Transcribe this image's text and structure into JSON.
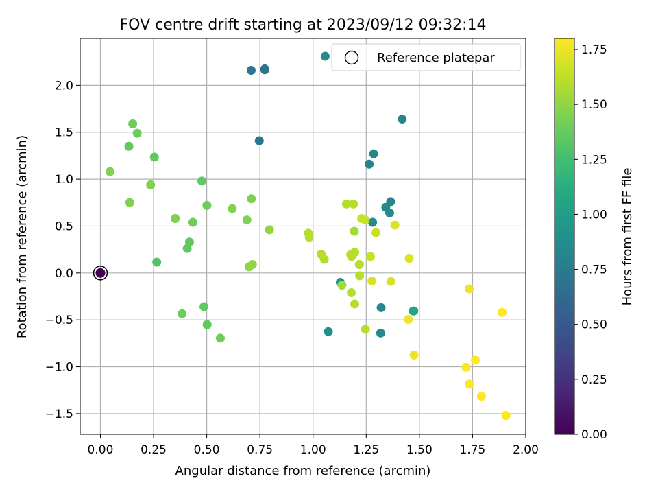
{
  "chart_data": {
    "type": "scatter",
    "title": "FOV centre drift starting at 2023/09/12 09:32:14",
    "xlabel": "Angular distance from reference (arcmin)",
    "ylabel": "Rotation from reference (arcmin)",
    "xlim": [
      -0.095,
      2.0
    ],
    "ylim": [
      -1.72,
      2.5
    ],
    "xticks": [
      "0.00",
      "0.25",
      "0.50",
      "0.75",
      "1.00",
      "1.25",
      "1.50",
      "1.75",
      "2.00"
    ],
    "yticks": [
      "−1.5",
      "−1.0",
      "−0.5",
      "0.0",
      "0.5",
      "1.0",
      "1.5",
      "2.0"
    ],
    "grid": true,
    "legend": {
      "placement": "top-right",
      "entries": [
        "Reference platepar"
      ]
    },
    "colorbar": {
      "label": "Hours from first FF file",
      "colormap": "viridis",
      "range": [
        0.0,
        1.8
      ],
      "ticks": [
        "0.00",
        "0.25",
        "0.50",
        "0.75",
        "1.00",
        "1.25",
        "1.50",
        "1.75"
      ]
    },
    "reference_point": {
      "x": 0.0,
      "y": 0.0,
      "hours": 0.0
    },
    "points": [
      {
        "x": 0.709,
        "y": 2.16,
        "hours": 0.7
      },
      {
        "x": 0.773,
        "y": 2.175,
        "hours": 0.7
      },
      {
        "x": 0.773,
        "y": 2.165,
        "hours": 0.7
      },
      {
        "x": 1.057,
        "y": 2.31,
        "hours": 0.85
      },
      {
        "x": 0.747,
        "y": 1.41,
        "hours": 0.72
      },
      {
        "x": 1.419,
        "y": 1.64,
        "hours": 0.82
      },
      {
        "x": 1.285,
        "y": 1.27,
        "hours": 0.82
      },
      {
        "x": 1.264,
        "y": 1.16,
        "hours": 0.8
      },
      {
        "x": 1.365,
        "y": 0.76,
        "hours": 0.82
      },
      {
        "x": 1.342,
        "y": 0.7,
        "hours": 0.85
      },
      {
        "x": 1.36,
        "y": 0.64,
        "hours": 0.85
      },
      {
        "x": 1.28,
        "y": 0.54,
        "hours": 0.85
      },
      {
        "x": 1.128,
        "y": -0.1,
        "hours": 0.9
      },
      {
        "x": 1.072,
        "y": -0.625,
        "hours": 0.9
      },
      {
        "x": 1.32,
        "y": -0.37,
        "hours": 0.85
      },
      {
        "x": 1.318,
        "y": -0.64,
        "hours": 0.85
      },
      {
        "x": 1.471,
        "y": -0.405,
        "hours": 1.0
      },
      {
        "x": 1.474,
        "y": -0.405,
        "hours": 1.05
      },
      {
        "x": 0.152,
        "y": 1.59,
        "hours": 1.4
      },
      {
        "x": 0.173,
        "y": 1.49,
        "hours": 1.4
      },
      {
        "x": 0.134,
        "y": 1.35,
        "hours": 1.35
      },
      {
        "x": 0.254,
        "y": 1.235,
        "hours": 1.35
      },
      {
        "x": 0.045,
        "y": 1.08,
        "hours": 1.45
      },
      {
        "x": 0.236,
        "y": 0.94,
        "hours": 1.45
      },
      {
        "x": 0.477,
        "y": 0.98,
        "hours": 1.35
      },
      {
        "x": 0.138,
        "y": 0.75,
        "hours": 1.45
      },
      {
        "x": 0.501,
        "y": 0.72,
        "hours": 1.4
      },
      {
        "x": 0.62,
        "y": 0.685,
        "hours": 1.45
      },
      {
        "x": 0.71,
        "y": 0.79,
        "hours": 1.45
      },
      {
        "x": 0.352,
        "y": 0.58,
        "hours": 1.45
      },
      {
        "x": 0.435,
        "y": 0.54,
        "hours": 1.4
      },
      {
        "x": 0.689,
        "y": 0.565,
        "hours": 1.45
      },
      {
        "x": 0.795,
        "y": 0.46,
        "hours": 1.5
      },
      {
        "x": 0.419,
        "y": 0.33,
        "hours": 1.35
      },
      {
        "x": 0.408,
        "y": 0.26,
        "hours": 1.35
      },
      {
        "x": 0.265,
        "y": 0.115,
        "hours": 1.3
      },
      {
        "x": 0.699,
        "y": 0.065,
        "hours": 1.5
      },
      {
        "x": 0.715,
        "y": 0.09,
        "hours": 1.5
      },
      {
        "x": 0.384,
        "y": -0.435,
        "hours": 1.4
      },
      {
        "x": 0.487,
        "y": -0.36,
        "hours": 1.35
      },
      {
        "x": 0.502,
        "y": -0.55,
        "hours": 1.35
      },
      {
        "x": 0.564,
        "y": -0.695,
        "hours": 1.4
      },
      {
        "x": 1.157,
        "y": 0.735,
        "hours": 1.6
      },
      {
        "x": 1.19,
        "y": 0.735,
        "hours": 1.6
      },
      {
        "x": 1.229,
        "y": 0.58,
        "hours": 1.65
      },
      {
        "x": 1.245,
        "y": 0.565,
        "hours": 1.65
      },
      {
        "x": 1.385,
        "y": 0.51,
        "hours": 1.7
      },
      {
        "x": 1.194,
        "y": 0.445,
        "hours": 1.55
      },
      {
        "x": 1.296,
        "y": 0.43,
        "hours": 1.65
      },
      {
        "x": 0.978,
        "y": 0.425,
        "hours": 1.6
      },
      {
        "x": 0.982,
        "y": 0.38,
        "hours": 1.6
      },
      {
        "x": 1.177,
        "y": 0.195,
        "hours": 1.6
      },
      {
        "x": 1.196,
        "y": 0.22,
        "hours": 1.6
      },
      {
        "x": 1.181,
        "y": 0.175,
        "hours": 1.6
      },
      {
        "x": 1.27,
        "y": 0.175,
        "hours": 1.65
      },
      {
        "x": 1.452,
        "y": 0.155,
        "hours": 1.7
      },
      {
        "x": 1.038,
        "y": 0.2,
        "hours": 1.6
      },
      {
        "x": 1.053,
        "y": 0.145,
        "hours": 1.6
      },
      {
        "x": 1.218,
        "y": 0.09,
        "hours": 1.6
      },
      {
        "x": 1.219,
        "y": -0.03,
        "hours": 1.6
      },
      {
        "x": 1.277,
        "y": -0.085,
        "hours": 1.7
      },
      {
        "x": 1.366,
        "y": -0.09,
        "hours": 1.7
      },
      {
        "x": 1.136,
        "y": -0.13,
        "hours": 1.55
      },
      {
        "x": 1.18,
        "y": -0.21,
        "hours": 1.6
      },
      {
        "x": 1.196,
        "y": -0.33,
        "hours": 1.6
      },
      {
        "x": 1.448,
        "y": -0.495,
        "hours": 1.75
      },
      {
        "x": 1.246,
        "y": -0.6,
        "hours": 1.6
      },
      {
        "x": 1.475,
        "y": -0.875,
        "hours": 1.75
      },
      {
        "x": 1.734,
        "y": -0.17,
        "hours": 1.75
      },
      {
        "x": 1.889,
        "y": -0.42,
        "hours": 1.8
      },
      {
        "x": 1.763,
        "y": -0.93,
        "hours": 1.8
      },
      {
        "x": 1.719,
        "y": -1.005,
        "hours": 1.8
      },
      {
        "x": 1.735,
        "y": -1.185,
        "hours": 1.8
      },
      {
        "x": 1.792,
        "y": -1.315,
        "hours": 1.8
      },
      {
        "x": 1.907,
        "y": -1.52,
        "hours": 1.8
      }
    ]
  }
}
